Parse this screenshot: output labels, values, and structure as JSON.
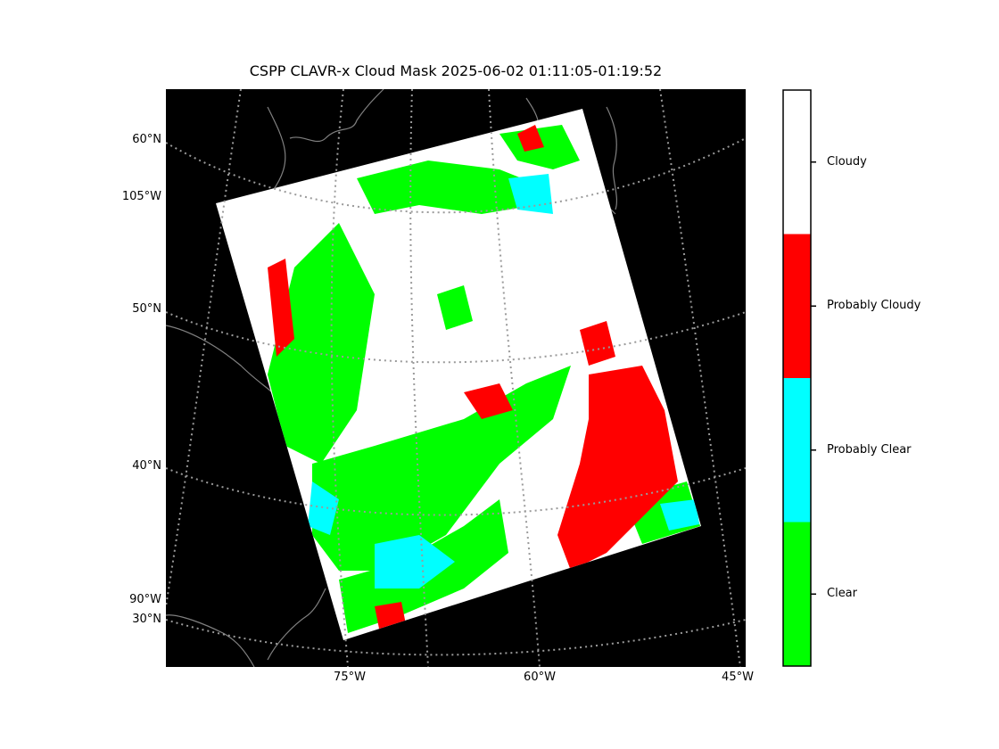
{
  "title": "CSPP CLAVR-x Cloud Mask 2025-06-02 01:11:05-01:19:52",
  "colors": {
    "background": "#000000",
    "clear": "#00ff00",
    "probably_clear": "#00ffff",
    "probably_cloudy": "#ff0000",
    "cloudy": "#ffffff",
    "coastline": "#808080",
    "gridline": "#9a9a9a"
  },
  "map": {
    "lat_labels": [
      "60°N",
      "105°W",
      "50°N",
      "40°N",
      "90°W",
      "30°N"
    ],
    "lon_labels": [
      "75°W",
      "60°W",
      "45°W"
    ]
  },
  "colorbar": {
    "categories": [
      {
        "label": "Cloudy",
        "color": "#ffffff"
      },
      {
        "label": "Probably Cloudy",
        "color": "#ff0000"
      },
      {
        "label": "Probably Clear",
        "color": "#00ffff"
      },
      {
        "label": "Clear",
        "color": "#00ff00"
      }
    ]
  }
}
